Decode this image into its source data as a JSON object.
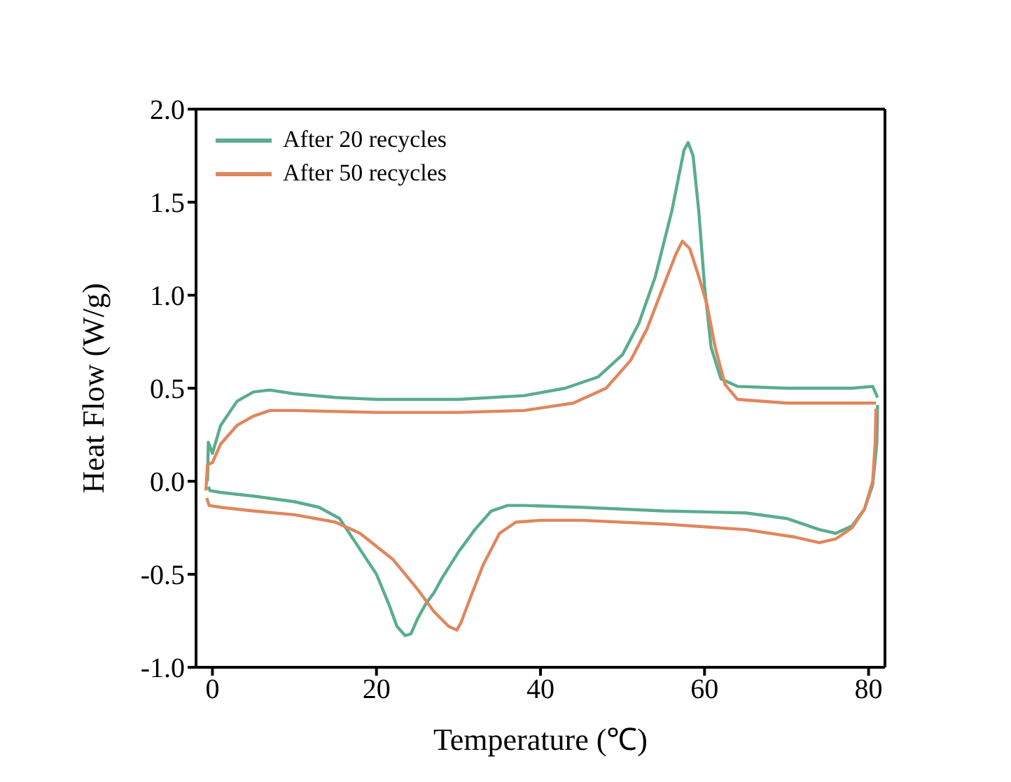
{
  "chart_data": {
    "type": "line",
    "xlabel": "Temperature (℃)",
    "ylabel": "Heat Flow (W/g)",
    "xlim": [
      -2,
      82
    ],
    "xticks": [
      0,
      20,
      40,
      60,
      80
    ],
    "ylim": [
      -1.0,
      2.0
    ],
    "yticks": [
      {
        "value": -1.0,
        "label": "-1.0"
      },
      {
        "value": -0.5,
        "label": "-0.5"
      },
      {
        "value": 0.0,
        "label": "0.0"
      },
      {
        "value": 0.5,
        "label": "0.5"
      },
      {
        "value": 1.0,
        "label": "1.0"
      },
      {
        "value": 1.5,
        "label": "1.5"
      },
      {
        "value": 2.0,
        "label": "2.0"
      }
    ],
    "grid": false,
    "legend": "top left",
    "marker": "none",
    "line_style": "solid",
    "series": [
      {
        "name": "After 20 recycles",
        "color": "#5aad8c",
        "x": [
          -0.6,
          -0.5,
          0,
          1,
          3,
          5,
          7,
          10,
          15,
          20,
          30,
          38,
          43,
          47,
          50,
          52,
          54,
          56,
          57.5,
          58,
          58.6,
          59.3,
          60,
          60.8,
          62,
          64,
          70,
          78,
          80.5,
          81.1
        ],
        "values": [
          0.0,
          0.21,
          0.15,
          0.3,
          0.43,
          0.48,
          0.49,
          0.47,
          0.45,
          0.44,
          0.44,
          0.46,
          0.5,
          0.56,
          0.68,
          0.85,
          1.1,
          1.45,
          1.78,
          1.82,
          1.75,
          1.45,
          1.05,
          0.72,
          0.55,
          0.51,
          0.5,
          0.5,
          0.51,
          0.45
        ]
      },
      {
        "name": "After 50 recycles",
        "color": "#e0865e",
        "x": [
          -0.8,
          -0.6,
          0,
          1,
          3,
          5,
          7,
          10,
          20,
          30,
          38,
          44,
          48,
          51,
          53,
          55,
          56.5,
          57.3,
          58.2,
          59.3,
          60.3,
          61.3,
          62.5,
          64,
          70,
          80,
          80.9
        ],
        "values": [
          -0.05,
          0.09,
          0.1,
          0.2,
          0.3,
          0.35,
          0.38,
          0.38,
          0.37,
          0.37,
          0.38,
          0.42,
          0.5,
          0.65,
          0.82,
          1.05,
          1.22,
          1.29,
          1.25,
          1.1,
          0.95,
          0.72,
          0.52,
          0.44,
          0.42,
          0.42,
          0.42
        ]
      },
      {
        "color": "#5aad8c",
        "x": [
          -0.5,
          -0.3,
          1,
          5,
          10,
          13,
          15.5,
          17,
          18.5,
          20,
          21.5,
          22.5,
          23.5,
          24.2,
          25,
          26,
          27,
          28,
          30,
          32,
          34,
          36,
          38,
          45,
          55,
          65,
          70,
          74,
          76,
          78,
          79.5,
          80.5,
          81,
          81.1
        ],
        "values": [
          -0.03,
          -0.05,
          -0.06,
          -0.08,
          -0.11,
          -0.14,
          -0.2,
          -0.3,
          -0.4,
          -0.5,
          -0.66,
          -0.78,
          -0.83,
          -0.82,
          -0.74,
          -0.66,
          -0.6,
          -0.52,
          -0.38,
          -0.26,
          -0.16,
          -0.13,
          -0.13,
          -0.14,
          -0.16,
          -0.17,
          -0.2,
          -0.26,
          -0.28,
          -0.24,
          -0.15,
          -0.02,
          0.2,
          0.41
        ]
      },
      {
        "color": "#e0865e",
        "x": [
          -0.7,
          -0.4,
          1,
          5,
          10,
          15,
          18,
          22,
          25,
          27,
          28.8,
          29.8,
          30.3,
          31.5,
          33,
          35,
          37,
          40,
          45,
          55,
          65,
          71,
          74,
          76,
          78,
          79.5,
          80.5,
          80.8,
          80.9
        ],
        "values": [
          -0.09,
          -0.13,
          -0.14,
          -0.16,
          -0.18,
          -0.22,
          -0.28,
          -0.42,
          -0.58,
          -0.7,
          -0.78,
          -0.8,
          -0.76,
          -0.62,
          -0.45,
          -0.28,
          -0.22,
          -0.21,
          -0.21,
          -0.23,
          -0.26,
          -0.3,
          -0.33,
          -0.31,
          -0.25,
          -0.15,
          0.0,
          0.2,
          0.39
        ]
      }
    ]
  }
}
